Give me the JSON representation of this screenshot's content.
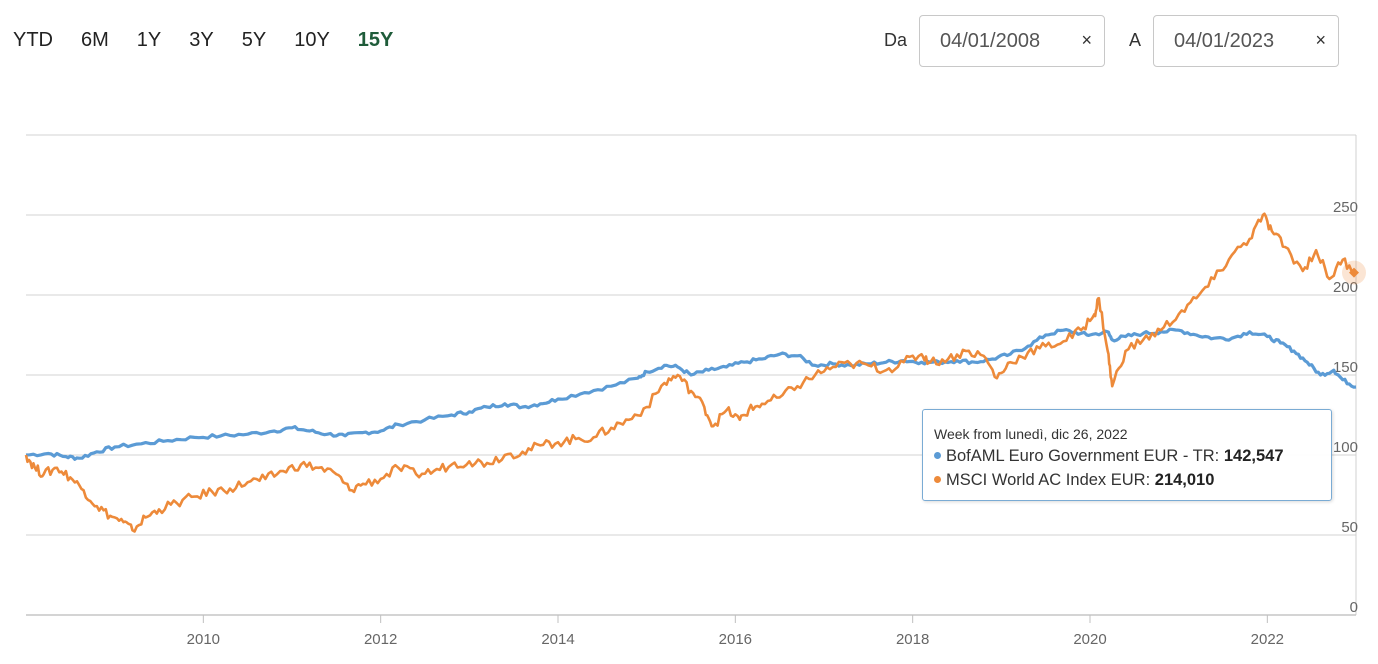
{
  "toolbar": {
    "ranges": [
      "YTD",
      "6M",
      "1Y",
      "3Y",
      "5Y",
      "10Y",
      "15Y"
    ],
    "active_range": "15Y",
    "from_label": "Da",
    "from_date": "04/01/2008",
    "to_label": "A",
    "to_date": "04/01/2023",
    "clear_glyph": "×"
  },
  "tooltip": {
    "header": "Week from lunedì, dic 26, 2022",
    "rows": [
      {
        "name": "BofAML Euro Government EUR - TR:",
        "value": "142,547",
        "color": "#5b9bd5"
      },
      {
        "name": "MSCI World AC Index EUR:",
        "value": "214,010",
        "color": "#ed8a3a"
      }
    ]
  },
  "chart_data": {
    "type": "line",
    "title": "",
    "xlabel": "",
    "ylabel": "",
    "xlim": [
      2008.0,
      2023.0
    ],
    "ylim": [
      0,
      300
    ],
    "x_ticks": [
      2010,
      2012,
      2014,
      2016,
      2018,
      2020,
      2022
    ],
    "y_ticks": [
      0,
      50,
      100,
      150,
      200,
      250
    ],
    "grid": true,
    "legend": "none",
    "series": [
      {
        "name": "BofAML Euro Government EUR - TR",
        "color": "#5b9bd5",
        "points": [
          [
            2008.0,
            100
          ],
          [
            2008.25,
            101
          ],
          [
            2008.45,
            99
          ],
          [
            2008.6,
            98
          ],
          [
            2008.8,
            102
          ],
          [
            2009.0,
            105
          ],
          [
            2009.3,
            107
          ],
          [
            2009.6,
            109
          ],
          [
            2009.9,
            111
          ],
          [
            2010.2,
            112
          ],
          [
            2010.5,
            113
          ],
          [
            2010.8,
            115
          ],
          [
            2011.0,
            117
          ],
          [
            2011.2,
            115
          ],
          [
            2011.4,
            113
          ],
          [
            2011.6,
            112
          ],
          [
            2011.8,
            114
          ],
          [
            2012.0,
            115
          ],
          [
            2012.2,
            119
          ],
          [
            2012.5,
            122
          ],
          [
            2012.8,
            125
          ],
          [
            2013.0,
            127
          ],
          [
            2013.2,
            130
          ],
          [
            2013.4,
            132
          ],
          [
            2013.6,
            130
          ],
          [
            2013.8,
            132
          ],
          [
            2014.0,
            135
          ],
          [
            2014.3,
            139
          ],
          [
            2014.6,
            143
          ],
          [
            2014.9,
            148
          ],
          [
            2015.0,
            152
          ],
          [
            2015.2,
            156
          ],
          [
            2015.35,
            155
          ],
          [
            2015.5,
            150
          ],
          [
            2015.7,
            153
          ],
          [
            2015.9,
            155
          ],
          [
            2016.1,
            158
          ],
          [
            2016.3,
            160
          ],
          [
            2016.5,
            163
          ],
          [
            2016.7,
            162
          ],
          [
            2016.9,
            156
          ],
          [
            2017.1,
            157
          ],
          [
            2017.3,
            156
          ],
          [
            2017.5,
            157
          ],
          [
            2017.7,
            158
          ],
          [
            2017.9,
            159
          ],
          [
            2018.1,
            158
          ],
          [
            2018.3,
            158
          ],
          [
            2018.5,
            159
          ],
          [
            2018.7,
            158
          ],
          [
            2018.9,
            160
          ],
          [
            2019.1,
            163
          ],
          [
            2019.3,
            168
          ],
          [
            2019.5,
            175
          ],
          [
            2019.7,
            178
          ],
          [
            2019.9,
            176
          ],
          [
            2020.0,
            175
          ],
          [
            2020.2,
            177
          ],
          [
            2020.25,
            172
          ],
          [
            2020.4,
            174
          ],
          [
            2020.6,
            176
          ],
          [
            2020.8,
            177
          ],
          [
            2021.0,
            178
          ],
          [
            2021.2,
            175
          ],
          [
            2021.4,
            173
          ],
          [
            2021.6,
            173
          ],
          [
            2021.8,
            177
          ],
          [
            2022.0,
            174
          ],
          [
            2022.15,
            170
          ],
          [
            2022.3,
            165
          ],
          [
            2022.45,
            158
          ],
          [
            2022.6,
            150
          ],
          [
            2022.75,
            153
          ],
          [
            2022.85,
            147
          ],
          [
            2023.0,
            142.5
          ]
        ]
      },
      {
        "name": "MSCI World AC Index EUR",
        "color": "#ed8a3a",
        "points": [
          [
            2008.0,
            100
          ],
          [
            2008.1,
            92
          ],
          [
            2008.2,
            88
          ],
          [
            2008.35,
            92
          ],
          [
            2008.5,
            86
          ],
          [
            2008.65,
            78
          ],
          [
            2008.8,
            68
          ],
          [
            2008.95,
            62
          ],
          [
            2009.1,
            58
          ],
          [
            2009.2,
            53
          ],
          [
            2009.35,
            61
          ],
          [
            2009.5,
            66
          ],
          [
            2009.7,
            70
          ],
          [
            2009.9,
            74
          ],
          [
            2010.1,
            77
          ],
          [
            2010.3,
            79
          ],
          [
            2010.5,
            83
          ],
          [
            2010.7,
            85
          ],
          [
            2010.9,
            90
          ],
          [
            2011.1,
            94
          ],
          [
            2011.3,
            92
          ],
          [
            2011.5,
            88
          ],
          [
            2011.65,
            78
          ],
          [
            2011.8,
            82
          ],
          [
            2012.0,
            85
          ],
          [
            2012.2,
            92
          ],
          [
            2012.4,
            88
          ],
          [
            2012.6,
            90
          ],
          [
            2012.8,
            94
          ],
          [
            2013.0,
            96
          ],
          [
            2013.2,
            95
          ],
          [
            2013.4,
            100
          ],
          [
            2013.6,
            102
          ],
          [
            2013.8,
            106
          ],
          [
            2014.0,
            108
          ],
          [
            2014.2,
            110
          ],
          [
            2014.4,
            111
          ],
          [
            2014.6,
            117
          ],
          [
            2014.8,
            122
          ],
          [
            2015.0,
            130
          ],
          [
            2015.2,
            145
          ],
          [
            2015.35,
            150
          ],
          [
            2015.5,
            140
          ],
          [
            2015.65,
            130
          ],
          [
            2015.75,
            118
          ],
          [
            2015.9,
            128
          ],
          [
            2016.05,
            122
          ],
          [
            2016.15,
            128
          ],
          [
            2016.3,
            132
          ],
          [
            2016.5,
            136
          ],
          [
            2016.7,
            143
          ],
          [
            2016.9,
            150
          ],
          [
            2017.1,
            155
          ],
          [
            2017.3,
            157
          ],
          [
            2017.5,
            156
          ],
          [
            2017.7,
            153
          ],
          [
            2017.9,
            158
          ],
          [
            2018.1,
            163
          ],
          [
            2018.2,
            158
          ],
          [
            2018.4,
            160
          ],
          [
            2018.6,
            165
          ],
          [
            2018.8,
            162
          ],
          [
            2018.95,
            148
          ],
          [
            2019.1,
            158
          ],
          [
            2019.3,
            164
          ],
          [
            2019.5,
            168
          ],
          [
            2019.7,
            171
          ],
          [
            2019.9,
            178
          ],
          [
            2020.05,
            188
          ],
          [
            2020.1,
            198
          ],
          [
            2020.2,
            165
          ],
          [
            2020.25,
            143
          ],
          [
            2020.4,
            165
          ],
          [
            2020.6,
            172
          ],
          [
            2020.8,
            178
          ],
          [
            2021.0,
            188
          ],
          [
            2021.2,
            198
          ],
          [
            2021.4,
            210
          ],
          [
            2021.6,
            225
          ],
          [
            2021.8,
            235
          ],
          [
            2021.95,
            250
          ],
          [
            2022.05,
            240
          ],
          [
            2022.2,
            230
          ],
          [
            2022.4,
            215
          ],
          [
            2022.55,
            228
          ],
          [
            2022.7,
            210
          ],
          [
            2022.85,
            222
          ],
          [
            2023.0,
            214
          ]
        ]
      }
    ]
  }
}
